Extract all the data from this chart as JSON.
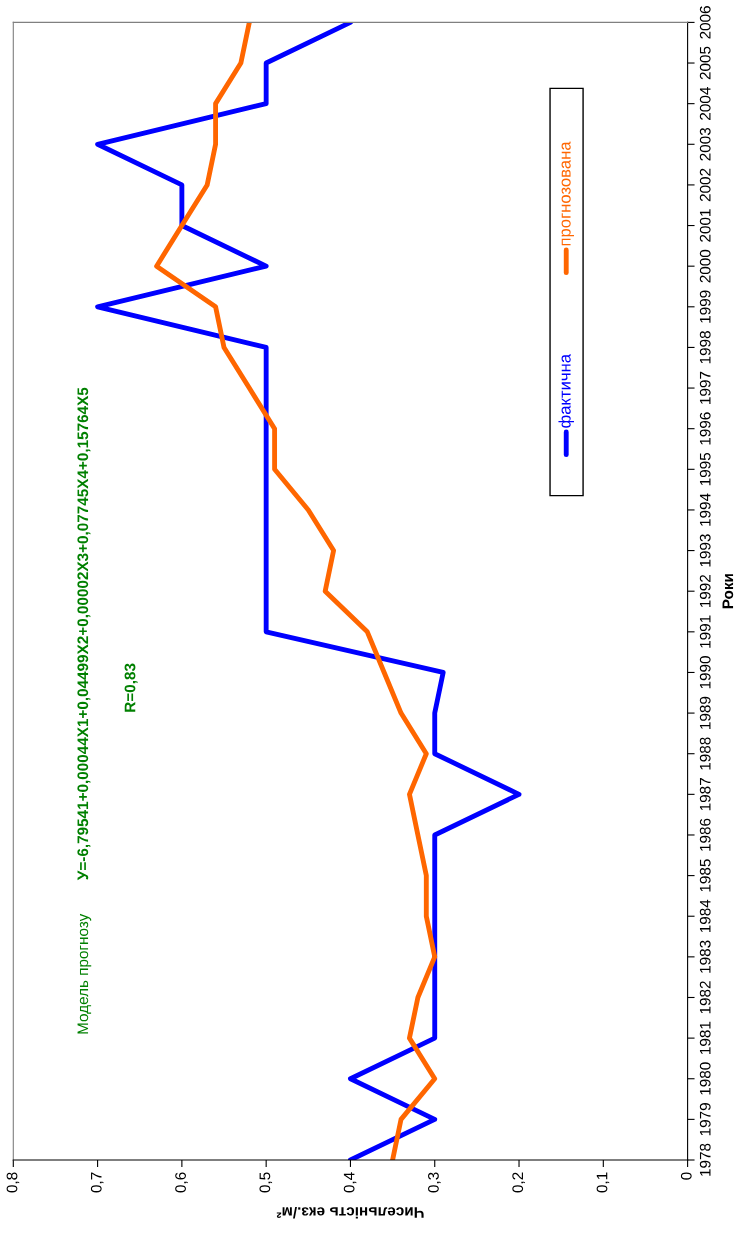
{
  "chart_data": {
    "type": "line",
    "orientation": "horizontal",
    "xlabel": "Чисельність екз./м²",
    "ylabel": "Роки",
    "categories": [
      "2006",
      "2005",
      "2004",
      "2003",
      "2002",
      "2001",
      "2000",
      "1999",
      "1998",
      "1997",
      "1996",
      "1995",
      "1994",
      "1993",
      "1992",
      "1991",
      "1990",
      "1989",
      "1988",
      "1987",
      "1986",
      "1985",
      "1984",
      "1983",
      "1982",
      "1981",
      "1980",
      "1979",
      "1978"
    ],
    "series": [
      {
        "name": "фактична",
        "color": "#0000ff",
        "values": [
          0.4,
          0.5,
          0.5,
          0.7,
          0.6,
          0.6,
          0.5,
          0.7,
          0.5,
          0.5,
          0.5,
          0.5,
          0.5,
          0.5,
          0.5,
          0.5,
          0.29,
          0.3,
          0.3,
          0.2,
          0.3,
          0.3,
          0.3,
          0.3,
          0.3,
          0.3,
          0.4,
          0.3,
          0.4
        ]
      },
      {
        "name": "прогнозована",
        "color": "#ff6600",
        "values": [
          0.52,
          0.53,
          0.56,
          0.56,
          0.57,
          0.6,
          0.63,
          0.56,
          0.55,
          0.52,
          0.49,
          0.49,
          0.45,
          0.42,
          0.43,
          0.38,
          0.36,
          0.34,
          0.31,
          0.33,
          0.32,
          0.31,
          0.31,
          0.3,
          0.32,
          0.33,
          0.3,
          0.34,
          0.35
        ]
      }
    ],
    "xlim": [
      0.8,
      0
    ],
    "xticks": [
      {
        "value": 0.8,
        "label": "0,8"
      },
      {
        "value": 0.7,
        "label": "0,7"
      },
      {
        "value": 0.6,
        "label": "0,6"
      },
      {
        "value": 0.5,
        "label": "0,5"
      },
      {
        "value": 0.4,
        "label": "0,4"
      },
      {
        "value": 0.3,
        "label": "0,3"
      },
      {
        "value": 0.2,
        "label": "0,2"
      },
      {
        "value": 0.1,
        "label": "0,1"
      },
      0
    ],
    "annotations": [
      "Модель прогнозу",
      "У=-6,79541+0,00044X1+0,04499X2+0,00002X3+0,07745X4+0,15764X5",
      "R=0,83"
    ],
    "legend": "right",
    "line_style": "solid",
    "marker": "none"
  }
}
